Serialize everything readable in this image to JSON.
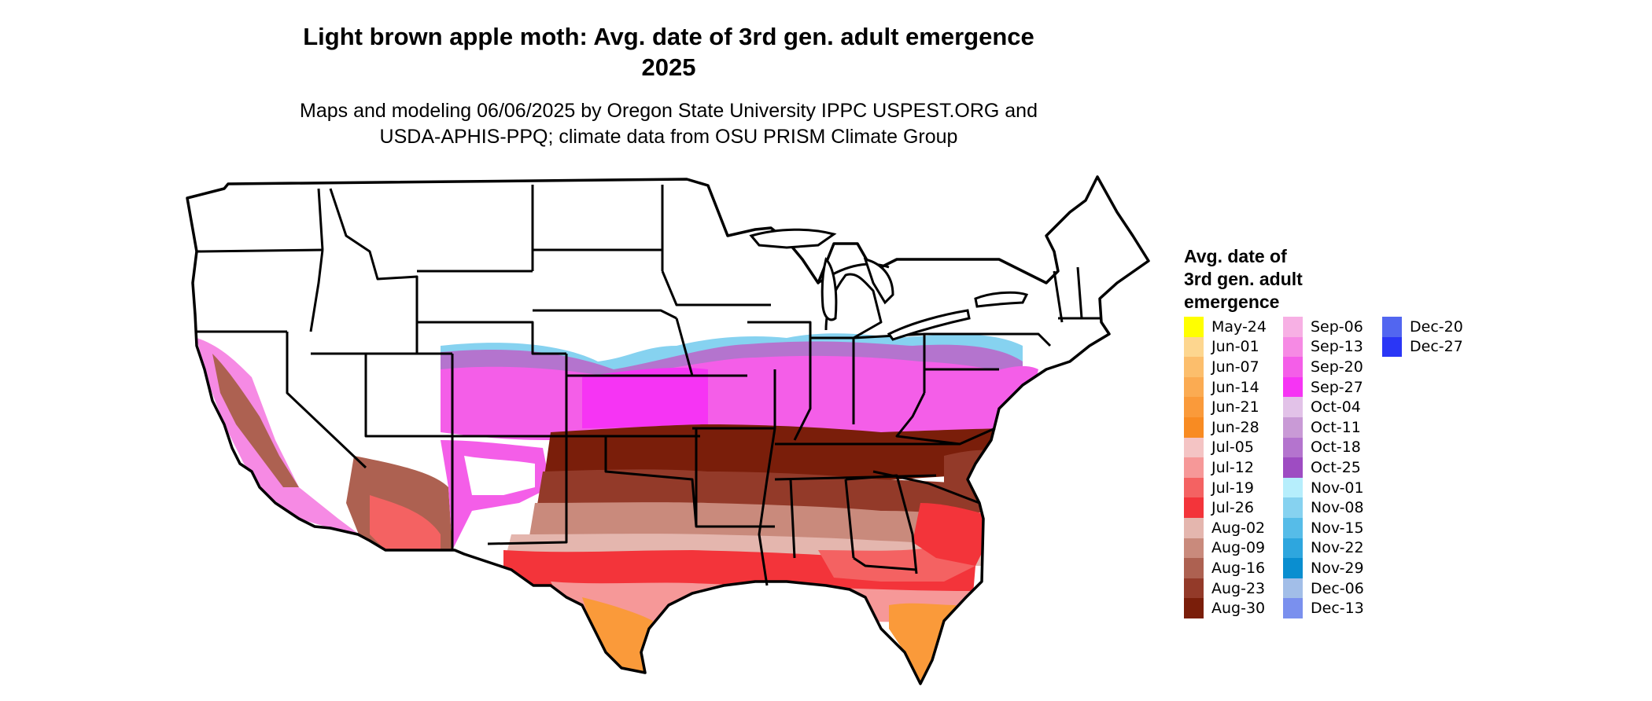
{
  "title": {
    "line1": "Light brown apple moth: Avg. date of 3rd gen. adult emergence",
    "line2": "2025"
  },
  "subtitle": {
    "line1": "Maps and modeling 06/06/2025 by Oregon State University IPPC USPEST.ORG and",
    "line2": "USDA-APHIS-PPQ; climate data from OSU PRISM Climate Group"
  },
  "legend": {
    "title_lines": [
      "Avg. date of",
      "3rd gen. adult",
      "emergence"
    ],
    "columns": [
      [
        {
          "label": "May-24",
          "color": "#ffff00"
        },
        {
          "label": "Jun-01",
          "color": "#fdd68f"
        },
        {
          "label": "Jun-07",
          "color": "#fcbe6c"
        },
        {
          "label": "Jun-14",
          "color": "#fbab52"
        },
        {
          "label": "Jun-21",
          "color": "#fa9a3a"
        },
        {
          "label": "Jun-28",
          "color": "#f88b22"
        },
        {
          "label": "Jul-05",
          "color": "#f4c4c4"
        },
        {
          "label": "Jul-12",
          "color": "#f69898"
        },
        {
          "label": "Jul-19",
          "color": "#f46262"
        },
        {
          "label": "Jul-26",
          "color": "#f3343a"
        },
        {
          "label": "Aug-02",
          "color": "#e4b6ae"
        },
        {
          "label": "Aug-09",
          "color": "#c98a7c"
        },
        {
          "label": "Aug-16",
          "color": "#ad6151"
        },
        {
          "label": "Aug-23",
          "color": "#933a29"
        },
        {
          "label": "Aug-30",
          "color": "#7a1e0a"
        }
      ],
      [
        {
          "label": "Sep-06",
          "color": "#f7b0e4"
        },
        {
          "label": "Sep-13",
          "color": "#f68ae4"
        },
        {
          "label": "Sep-20",
          "color": "#f45ee8"
        },
        {
          "label": "Sep-27",
          "color": "#f634f4"
        },
        {
          "label": "Oct-04",
          "color": "#e2c2e8"
        },
        {
          "label": "Oct-11",
          "color": "#c99ad6"
        },
        {
          "label": "Oct-18",
          "color": "#b474ce"
        },
        {
          "label": "Oct-25",
          "color": "#9e4cc2"
        },
        {
          "label": "Nov-01",
          "color": "#b6eefc"
        },
        {
          "label": "Nov-08",
          "color": "#86d2f0"
        },
        {
          "label": "Nov-15",
          "color": "#56bce8"
        },
        {
          "label": "Nov-22",
          "color": "#2ea6de"
        },
        {
          "label": "Nov-29",
          "color": "#0a8ed0"
        },
        {
          "label": "Dec-06",
          "color": "#a2bee8"
        },
        {
          "label": "Dec-13",
          "color": "#7a90ee"
        }
      ],
      [
        {
          "label": "Dec-20",
          "color": "#5266f0"
        },
        {
          "label": "Dec-27",
          "color": "#2a36f6"
        }
      ]
    ]
  },
  "map": {
    "boundary_color": "#000000",
    "no_emergence_color": "#ffffff"
  }
}
